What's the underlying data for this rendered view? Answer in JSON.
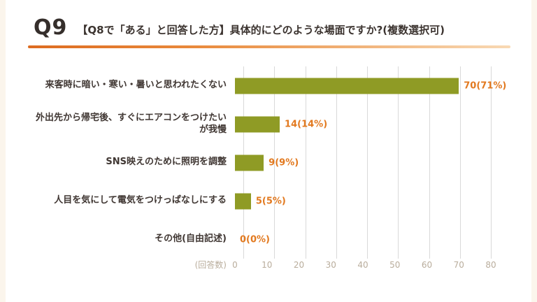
{
  "header": {
    "q_label": "Q9",
    "title_rest": "【Q8で「ある」と回答した方】具体的にどのような場面ですか?(複数選択可)"
  },
  "colors": {
    "bar": "#8f9b25",
    "value_label": "#e2791f",
    "underline_from": "#dd6b20",
    "underline_to": "#f8d9b4",
    "grid": "#d9d9d9",
    "tick_text": "#b9ad9c",
    "title_text": "#3c3430",
    "background": "#fbf5ec",
    "card": "#ffffff"
  },
  "chart_data": {
    "type": "bar",
    "orientation": "horizontal",
    "title": "Q9 【Q8で「ある」と回答した方】具体的にどのような場面ですか?(複数選択可)",
    "categories": [
      "来客時に暗い・寒い・暑いと思われたくない",
      "外出先から帰宅後、すぐにエアコンをつけたいが我慢",
      "SNS映えのために照明を調整",
      "人目を気にして電気をつけっぱなしにする",
      "その他(自由記述)"
    ],
    "values": [
      70,
      14,
      9,
      5,
      0
    ],
    "value_labels": [
      "70(71%)",
      "14(14%)",
      "9(9%)",
      "5(5%)",
      "0(0%)"
    ],
    "xlabel": "(回答数)",
    "xlim": [
      0,
      80
    ],
    "xticks": [
      0,
      10,
      20,
      30,
      40,
      50,
      60,
      70,
      80
    ],
    "legend": false,
    "grid": true
  }
}
